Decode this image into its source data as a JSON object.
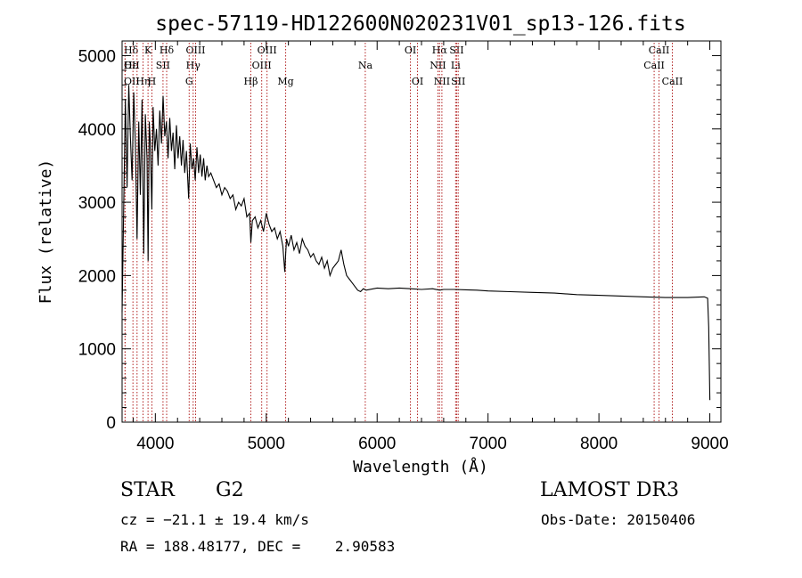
{
  "chart_data": {
    "type": "line",
    "title": "spec-57119-HD122600N020231V01_sp13-126.fits",
    "xlabel": "Wavelength (Å)",
    "ylabel": "Flux (relative)",
    "xlim": [
      3700,
      9100
    ],
    "ylim": [
      0,
      5200
    ],
    "x_ticks": [
      4000,
      5000,
      6000,
      7000,
      8000,
      9000
    ],
    "y_ticks": [
      0,
      1000,
      2000,
      3000,
      4000,
      5000
    ],
    "x_tick_labels": [
      "4000",
      "5000",
      "6000",
      "7000",
      "8000",
      "9000"
    ],
    "y_tick_labels": [
      "0",
      "1000",
      "2000",
      "3000",
      "4000",
      "5000"
    ],
    "series": [
      {
        "name": "flux",
        "x": [
          3700,
          3715,
          3730,
          3745,
          3760,
          3775,
          3790,
          3805,
          3820,
          3835,
          3850,
          3865,
          3880,
          3895,
          3910,
          3925,
          3935,
          3945,
          3955,
          3968,
          3980,
          3995,
          4010,
          4025,
          4040,
          4055,
          4070,
          4085,
          4100,
          4115,
          4130,
          4145,
          4160,
          4175,
          4190,
          4205,
          4220,
          4235,
          4250,
          4265,
          4280,
          4300,
          4315,
          4330,
          4345,
          4360,
          4375,
          4390,
          4405,
          4420,
          4435,
          4450,
          4465,
          4480,
          4500,
          4525,
          4550,
          4575,
          4600,
          4625,
          4650,
          4675,
          4700,
          4725,
          4750,
          4775,
          4800,
          4825,
          4850,
          4861,
          4875,
          4900,
          4925,
          4950,
          4975,
          5000,
          5025,
          5050,
          5075,
          5100,
          5125,
          5150,
          5167,
          5175,
          5183,
          5200,
          5225,
          5250,
          5275,
          5300,
          5325,
          5350,
          5375,
          5400,
          5425,
          5450,
          5475,
          5500,
          5525,
          5550,
          5575,
          5600,
          5625,
          5650,
          5675,
          5700,
          5725,
          5750,
          5775,
          5800,
          5825,
          5850,
          5875,
          5900,
          6000,
          6100,
          6200,
          6300,
          6400,
          6500,
          6563,
          6600,
          6700,
          6800,
          6900,
          7000,
          7200,
          7400,
          7600,
          7800,
          8000,
          8200,
          8400,
          8600,
          8800,
          8950,
          8980,
          8990,
          9000
        ],
        "values": [
          1500,
          3000,
          4400,
          3200,
          4600,
          3900,
          3300,
          4500,
          3800,
          2500,
          4100,
          3100,
          4400,
          2300,
          4200,
          3600,
          2200,
          4100,
          3800,
          2900,
          4300,
          3700,
          4000,
          3500,
          4250,
          3800,
          4450,
          3900,
          4100,
          3600,
          4150,
          3700,
          3950,
          3450,
          4050,
          3600,
          3900,
          3500,
          3850,
          3400,
          3700,
          3050,
          3800,
          3450,
          3600,
          3300,
          3750,
          3400,
          3650,
          3350,
          3600,
          3300,
          3500,
          3350,
          3400,
          3300,
          3200,
          3250,
          3100,
          3200,
          3150,
          3050,
          3100,
          2900,
          3000,
          2950,
          3050,
          2800,
          2850,
          2450,
          2750,
          2800,
          2650,
          2750,
          2600,
          2850,
          2700,
          2600,
          2650,
          2500,
          2600,
          2400,
          2050,
          2300,
          2500,
          2400,
          2550,
          2350,
          2450,
          2300,
          2500,
          2400,
          2350,
          2250,
          2300,
          2200,
          2150,
          2250,
          2100,
          2200,
          2000,
          2100,
          2150,
          2200,
          2350,
          2150,
          2000,
          1950,
          1900,
          1850,
          1800,
          1780,
          1820,
          1800,
          1830,
          1820,
          1830,
          1820,
          1810,
          1820,
          1800,
          1810,
          1810,
          1805,
          1800,
          1790,
          1780,
          1770,
          1760,
          1740,
          1730,
          1720,
          1710,
          1700,
          1700,
          1710,
          1690,
          1300,
          300
        ]
      }
    ],
    "lines": [
      {
        "label": "Hδ",
        "wl": 3798,
        "row": 0,
        "align": "left"
      },
      {
        "label": "OII",
        "wl": 3727,
        "row": 1,
        "align": "left"
      },
      {
        "label": "OII",
        "wl": 3727,
        "row": 2,
        "align": "left"
      },
      {
        "label": "Hε",
        "wl": 3835,
        "row": 1,
        "align": "left"
      },
      {
        "label": "Hη",
        "wl": 3889,
        "row": 2,
        "align": "middle"
      },
      {
        "label": "K",
        "wl": 3934,
        "row": 0,
        "align": "middle"
      },
      {
        "label": "H",
        "wl": 3969,
        "row": 2,
        "align": "middle"
      },
      {
        "label": "SII",
        "wl": 4069,
        "row": 1,
        "align": "middle"
      },
      {
        "label": "Hδ",
        "wl": 4102,
        "row": 0,
        "align": "middle"
      },
      {
        "label": "OIII",
        "wl": 4363,
        "row": 0,
        "align": "middle"
      },
      {
        "label": "Hγ",
        "wl": 4341,
        "row": 1,
        "align": "middle"
      },
      {
        "label": "G",
        "wl": 4305,
        "row": 2,
        "align": "middle"
      },
      {
        "label": "Hβ",
        "wl": 4861,
        "row": 2,
        "align": "middle"
      },
      {
        "label": "OIII",
        "wl": 4959,
        "row": 1,
        "align": "middle"
      },
      {
        "label": "OIII",
        "wl": 5007,
        "row": 0,
        "align": "middle"
      },
      {
        "label": "Mg",
        "wl": 5175,
        "row": 2,
        "align": "middle"
      },
      {
        "label": "Na",
        "wl": 5893,
        "row": 1,
        "align": "middle"
      },
      {
        "label": "OI",
        "wl": 6300,
        "row": 0,
        "align": "middle"
      },
      {
        "label": "OI",
        "wl": 6364,
        "row": 2,
        "align": "middle"
      },
      {
        "label": "Hα",
        "wl": 6563,
        "row": 0,
        "align": "middle"
      },
      {
        "label": "NII",
        "wl": 6548,
        "row": 1,
        "align": "middle"
      },
      {
        "label": "NII",
        "wl": 6584,
        "row": 2,
        "align": "middle"
      },
      {
        "label": "SII",
        "wl": 6717,
        "row": 0,
        "align": "middle"
      },
      {
        "label": "Li",
        "wl": 6708,
        "row": 1,
        "align": "middle"
      },
      {
        "label": "SII",
        "wl": 6731,
        "row": 2,
        "align": "middle"
      },
      {
        "label": "CaII",
        "wl": 8542,
        "row": 0,
        "align": "middle"
      },
      {
        "label": "CaII",
        "wl": 8498,
        "row": 1,
        "align": "middle"
      },
      {
        "label": "CaII",
        "wl": 8662,
        "row": 2,
        "align": "middle"
      }
    ],
    "colors": {
      "spectrum": "#000000",
      "line_marker": "#b22222",
      "axes": "#000000"
    }
  },
  "info": {
    "class": "STAR",
    "subclass": "G2",
    "survey": "LAMOST DR3",
    "cz": "cz = −21.1 ± 19.4 km/s",
    "obs_date": "Obs-Date: 20150406",
    "radec": "RA = 188.48177, DEC =    2.90583"
  }
}
